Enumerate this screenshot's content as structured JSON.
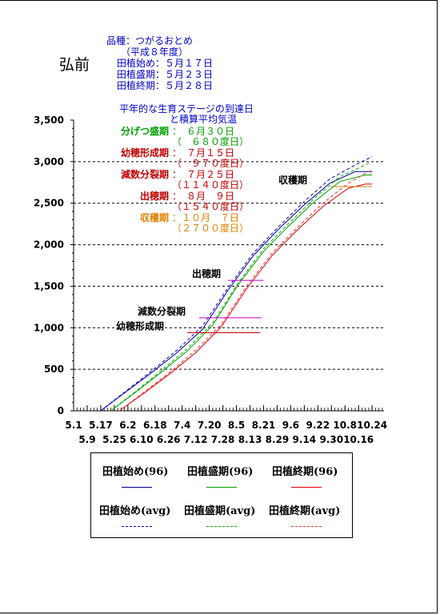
{
  "header": {
    "city": "弘前",
    "variety": "品種：つがるおとめ",
    "year": "（平成８年度）",
    "start": "田植始め：５月１７日",
    "peak": "田植盛期：５月２３日",
    "end": "田植終期：５月２８日"
  },
  "chart_data": {
    "type": "line",
    "title": "平年的な生育ステージの到達日",
    "subtitle": "と積算平均気温",
    "ylim": [
      0,
      3500
    ],
    "yticks": [
      "0",
      "500",
      "1,000",
      "1,500",
      "2,000",
      "2,500",
      "3,000",
      "3,500"
    ],
    "xticks_top": [
      "5.1",
      "5.17",
      "6.2",
      "6.18",
      "7.4",
      "7.20",
      "8.5",
      "8.21",
      "9.6",
      "9.22",
      "10.8",
      "10.24"
    ],
    "xticks_bottom": [
      "5.9",
      "5.25",
      "6.10",
      "6.26",
      "7.12",
      "7.28",
      "8.13",
      "8.29",
      "9.14",
      "9.30",
      "10.16"
    ],
    "x_start": "5.1",
    "x_end": "10.31",
    "series": [
      {
        "name": "田植始め(96)",
        "color": "#00008b",
        "dash": false,
        "x": [
          "5.17",
          "6.1",
          "6.16",
          "7.1",
          "7.16",
          "7.31",
          "8.15",
          "8.30",
          "9.14",
          "9.29",
          "10.14",
          "10.24"
        ],
        "values": [
          0,
          230,
          460,
          700,
          980,
          1450,
          1870,
          2190,
          2480,
          2740,
          2880,
          2880
        ]
      },
      {
        "name": "田植盛期(96)",
        "color": "#00a000",
        "dash": false,
        "x": [
          "5.23",
          "6.7",
          "6.22",
          "7.7",
          "7.22",
          "8.6",
          "8.21",
          "9.5",
          "9.20",
          "10.5",
          "10.20",
          "10.24"
        ],
        "values": [
          0,
          230,
          470,
          720,
          1030,
          1520,
          1920,
          2230,
          2520,
          2760,
          2840,
          2840
        ]
      },
      {
        "name": "田植終期(96)",
        "color": "#e00000",
        "dash": false,
        "x": [
          "5.28",
          "6.12",
          "6.27",
          "7.12",
          "7.27",
          "8.11",
          "8.26",
          "9.10",
          "9.25",
          "10.10",
          "10.20",
          "10.24"
        ],
        "values": [
          0,
          220,
          450,
          700,
          1010,
          1470,
          1870,
          2180,
          2460,
          2680,
          2730,
          2730
        ]
      },
      {
        "name": "田植始め(avg)",
        "color": "#0000cc",
        "dash": true,
        "x": [
          "5.17",
          "6.1",
          "6.16",
          "7.1",
          "7.16",
          "7.31",
          "8.15",
          "8.30",
          "9.14",
          "9.29",
          "10.14",
          "10.24"
        ],
        "values": [
          0,
          240,
          480,
          730,
          1020,
          1480,
          1900,
          2220,
          2520,
          2790,
          2960,
          3060
        ]
      },
      {
        "name": "田植盛期(avg)",
        "color": "#00b000",
        "dash": true,
        "x": [
          "5.23",
          "6.7",
          "6.22",
          "7.7",
          "7.22",
          "8.6",
          "8.21",
          "9.5",
          "9.20",
          "10.5",
          "10.20",
          "10.24"
        ],
        "values": [
          0,
          240,
          490,
          750,
          1060,
          1540,
          1950,
          2260,
          2560,
          2820,
          2960,
          3000
        ]
      },
      {
        "name": "田植終期(avg)",
        "color": "#ff3030",
        "dash": true,
        "x": [
          "5.28",
          "6.12",
          "6.27",
          "7.12",
          "7.27",
          "8.11",
          "8.26",
          "9.10",
          "9.25",
          "10.10",
          "10.20",
          "10.24"
        ],
        "values": [
          0,
          230,
          470,
          730,
          1040,
          1500,
          1900,
          2210,
          2500,
          2740,
          2860,
          2900
        ]
      }
    ],
    "stage_lines": [
      {
        "label": "幼穂形成期",
        "value": 940,
        "x_start": "7.7",
        "x_end": "8.19",
        "color": "#c00000"
      },
      {
        "label": "減数分裂期",
        "value": 1120,
        "x_start": "7.14",
        "x_end": "8.20",
        "color": "#c000c0"
      },
      {
        "label": "出穂期",
        "value": 1570,
        "x_start": "7.31",
        "x_end": "8.21",
        "color": "#c000c0"
      },
      {
        "label": "収穫期",
        "value": 2700,
        "x_start": "9.30",
        "x_end": "10.24",
        "color": "#c08000"
      }
    ],
    "annotations": [
      {
        "label": "分げつ盛期",
        "date": "：　６月３０日",
        "deg": "（　６８０度日）",
        "color": "#00a000"
      },
      {
        "label": "幼穂形成期",
        "date": "：　７月１５日",
        "deg": "（　９７０度日）",
        "color": "#c00000"
      },
      {
        "label": "減数分裂期",
        "date": "：　７月２５日",
        "deg": "（１１４０度日）",
        "color": "#c00000"
      },
      {
        "label": "出穂期",
        "date": "：　８月　９日",
        "deg": "（１５４０度日）",
        "color": "#c00000"
      },
      {
        "label": "収穫期",
        "date": "：１０月　７日",
        "deg": "（２７００度日）",
        "color": "#e08000"
      }
    ]
  },
  "legend": {
    "items": [
      {
        "label": "田植始め(96)",
        "color": "#00008b",
        "dash": false
      },
      {
        "label": "田植盛期(96)",
        "color": "#00a000",
        "dash": false
      },
      {
        "label": "田植終期(96)",
        "color": "#e00000",
        "dash": false
      },
      {
        "label": "田植始め(avg)",
        "color": "#0000cc",
        "dash": true
      },
      {
        "label": "田植盛期(avg)",
        "color": "#00b000",
        "dash": true
      },
      {
        "label": "田植終期(avg)",
        "color": "#ff3030",
        "dash": true
      }
    ]
  }
}
